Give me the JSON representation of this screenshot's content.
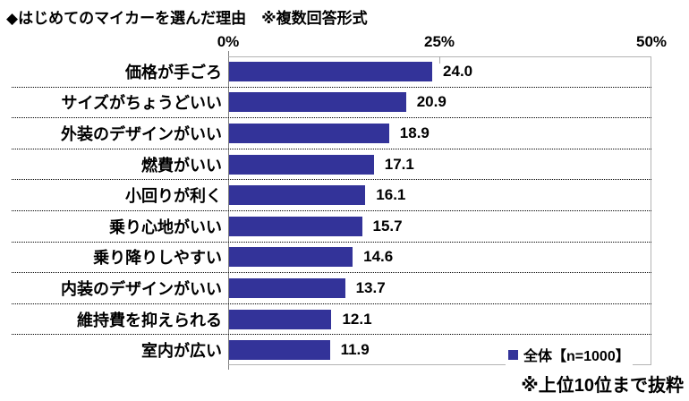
{
  "title": "◆はじめてのマイカーを選んだ理由　※複数回答形式",
  "footnote": "※上位10位まで抜粋",
  "legend": {
    "label": "全体【n=1000】"
  },
  "colors": {
    "bar": "#333399",
    "axis_line": "#808080",
    "plot_border": "#b3b3b3",
    "separator": "#000000"
  },
  "chart_data": {
    "type": "bar",
    "orientation": "horizontal",
    "title": "◆はじめてのマイカーを選んだ理由　※複数回答形式",
    "categories": [
      "価格が手ごろ",
      "サイズがちょうどいい",
      "外装のデザインがいい",
      "燃費がいい",
      "小回りが利く",
      "乗り心地がいい",
      "乗り降りしやすい",
      "内装のデザインがいい",
      "維持費を抑えられる",
      "室内が広い"
    ],
    "values": [
      24.0,
      20.9,
      18.9,
      17.1,
      16.1,
      15.7,
      14.6,
      13.7,
      12.1,
      11.9
    ],
    "value_labels": [
      "24.0",
      "20.9",
      "18.9",
      "17.1",
      "16.1",
      "15.7",
      "14.6",
      "13.7",
      "12.1",
      "11.9"
    ],
    "xlim": [
      0,
      50
    ],
    "x_tick_labels": [
      "0%",
      "25%",
      "50%"
    ],
    "grid": "dotted-row-separators",
    "legend": [
      "全体【n=1000】"
    ],
    "legend_position": "inside-bottom-right",
    "note": "※上位10位まで抜粋"
  }
}
